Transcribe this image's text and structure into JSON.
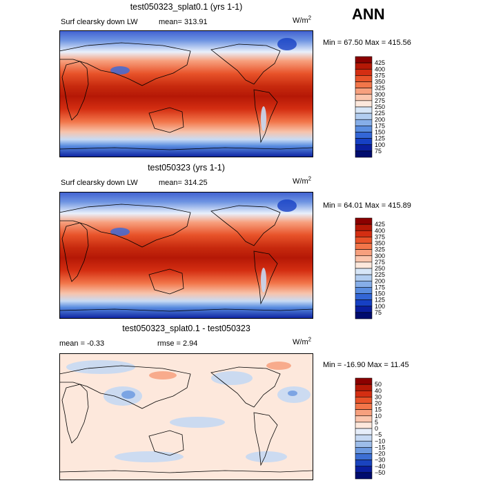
{
  "season": "ANN",
  "chart_data": [
    {
      "type": "heatmap",
      "title": "test050323_splat0.1 (yrs 1-1)",
      "variable": "Surf clearsky down LW",
      "mean_label": "mean=",
      "mean_value": "313.91",
      "units_base": "W/m",
      "units_exp": "2",
      "min_label": "Min =",
      "min_value": "67.50",
      "max_label": "Max =",
      "max_value": "415.56",
      "colorbar": {
        "levels": [
          "425",
          "400",
          "375",
          "350",
          "325",
          "300",
          "275",
          "250",
          "225",
          "200",
          "175",
          "150",
          "125",
          "100",
          "75"
        ],
        "colors": [
          "#8b0000",
          "#b51806",
          "#d42e12",
          "#e8532a",
          "#f2764a",
          "#f7a07e",
          "#fbc6ae",
          "#fde8dc",
          "#d7e6f7",
          "#b2cdf0",
          "#86aee8",
          "#5a8de0",
          "#3366d6",
          "#1640c4",
          "#0a1e9e",
          "#000c6e"
        ]
      }
    },
    {
      "type": "heatmap",
      "title": "test050323 (yrs 1-1)",
      "variable": "Surf clearsky down LW",
      "mean_label": "mean=",
      "mean_value": "314.25",
      "units_base": "W/m",
      "units_exp": "2",
      "min_label": "Min =",
      "min_value": "64.01",
      "max_label": "Max =",
      "max_value": "415.89",
      "colorbar": {
        "levels": [
          "425",
          "400",
          "375",
          "350",
          "325",
          "300",
          "275",
          "250",
          "225",
          "200",
          "175",
          "150",
          "125",
          "100",
          "75"
        ],
        "colors": [
          "#8b0000",
          "#b51806",
          "#d42e12",
          "#e8532a",
          "#f2764a",
          "#f7a07e",
          "#fbc6ae",
          "#fde8dc",
          "#d7e6f7",
          "#b2cdf0",
          "#86aee8",
          "#5a8de0",
          "#3366d6",
          "#1640c4",
          "#0a1e9e",
          "#000c6e"
        ]
      }
    },
    {
      "type": "heatmap",
      "title": "test050323_splat0.1 - test050323",
      "mean_label": "mean =",
      "mean_value": "-0.33",
      "rmse_label": "rmse =",
      "rmse_value": "2.94",
      "units_base": "W/m",
      "units_exp": "2",
      "min_label": "Min =",
      "min_value": "-16.90",
      "max_label": "Max =",
      "max_value": "11.45",
      "colorbar": {
        "levels": [
          "50",
          "40",
          "30",
          "20",
          "15",
          "10",
          "5",
          "0",
          "−5",
          "−10",
          "−15",
          "−20",
          "−30",
          "−40",
          "−50"
        ],
        "colors": [
          "#8b0000",
          "#b51806",
          "#d42e12",
          "#e8532a",
          "#f2764a",
          "#f7a07e",
          "#fbc6ae",
          "#fde8dc",
          "#e6eefa",
          "#c6d9f3",
          "#9dbde9",
          "#6d9ae0",
          "#3d6fd4",
          "#1a44bf",
          "#0a1e9e",
          "#000c6e"
        ]
      }
    }
  ]
}
